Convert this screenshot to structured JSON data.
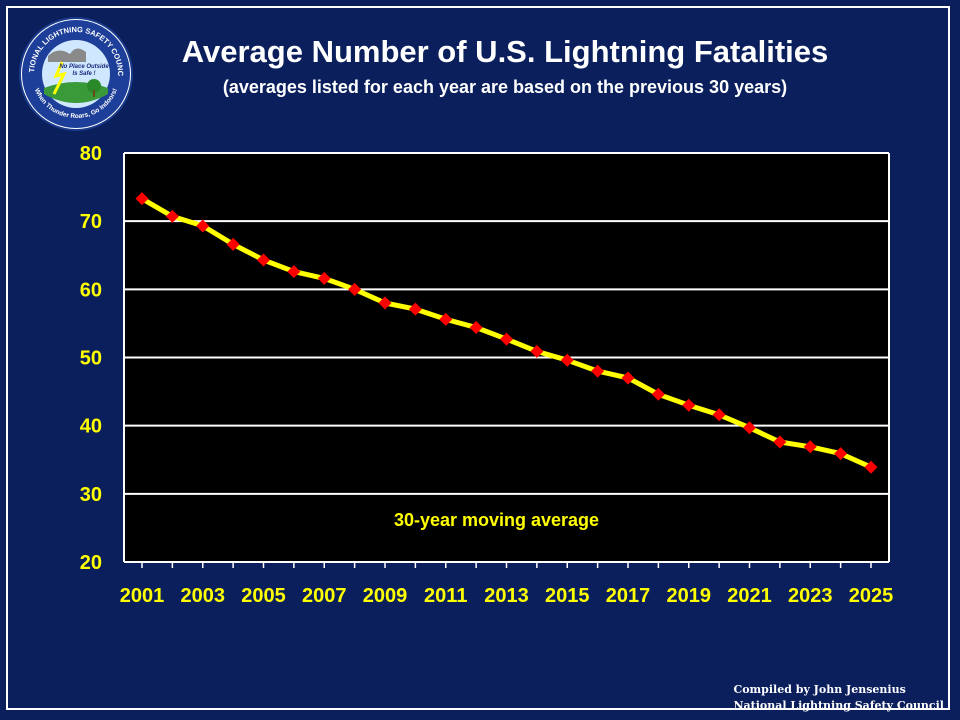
{
  "header": {
    "title": "Average Number of U.S. Lightning Fatalities",
    "subtitle": "(averages listed for each year are based on the previous  30 years)"
  },
  "logo": {
    "ring_text_top": "NATIONAL LIGHTNING SAFETY COUNCIL",
    "ring_text_bottom": "When Thunder Roars, Go Indoors!",
    "inner_text_line1": "No Place Outside",
    "inner_text_line2": "Is Safe !"
  },
  "credit": {
    "line1": "Compiled by John Jensenius",
    "line2": "National Lightning Safety Council"
  },
  "colors": {
    "background": "#0a1f5c",
    "plot_background": "#000000",
    "gridline": "#ffffff",
    "line": "#ffff00",
    "marker": "#ff0000",
    "tick_text": "#ffff00"
  },
  "chart_data": {
    "type": "line",
    "title": "Average Number of U.S. Lightning Fatalities",
    "subtitle": "(averages listed for each year are based on the previous  30 years)",
    "xlabel": "",
    "ylabel": "",
    "ylim": [
      20,
      80
    ],
    "yticks": [
      20,
      30,
      40,
      50,
      60,
      70,
      80
    ],
    "xticks": [
      2001,
      2003,
      2005,
      2007,
      2009,
      2011,
      2013,
      2015,
      2017,
      2019,
      2021,
      2023,
      2025
    ],
    "grid": true,
    "annotation": "30-year moving average",
    "x": [
      2001,
      2002,
      2003,
      2004,
      2005,
      2006,
      2007,
      2008,
      2009,
      2010,
      2011,
      2012,
      2013,
      2014,
      2015,
      2016,
      2017,
      2018,
      2019,
      2020,
      2021,
      2022,
      2023,
      2024,
      2025
    ],
    "series": [
      {
        "values": [
          73.3,
          70.7,
          69.3,
          66.6,
          64.3,
          62.6,
          61.6,
          60.0,
          58.0,
          57.1,
          55.6,
          54.4,
          52.7,
          50.9,
          49.6,
          48.0,
          47.0,
          44.6,
          43.0,
          41.6,
          39.7,
          37.6,
          36.9,
          35.9,
          33.9
        ]
      }
    ]
  }
}
